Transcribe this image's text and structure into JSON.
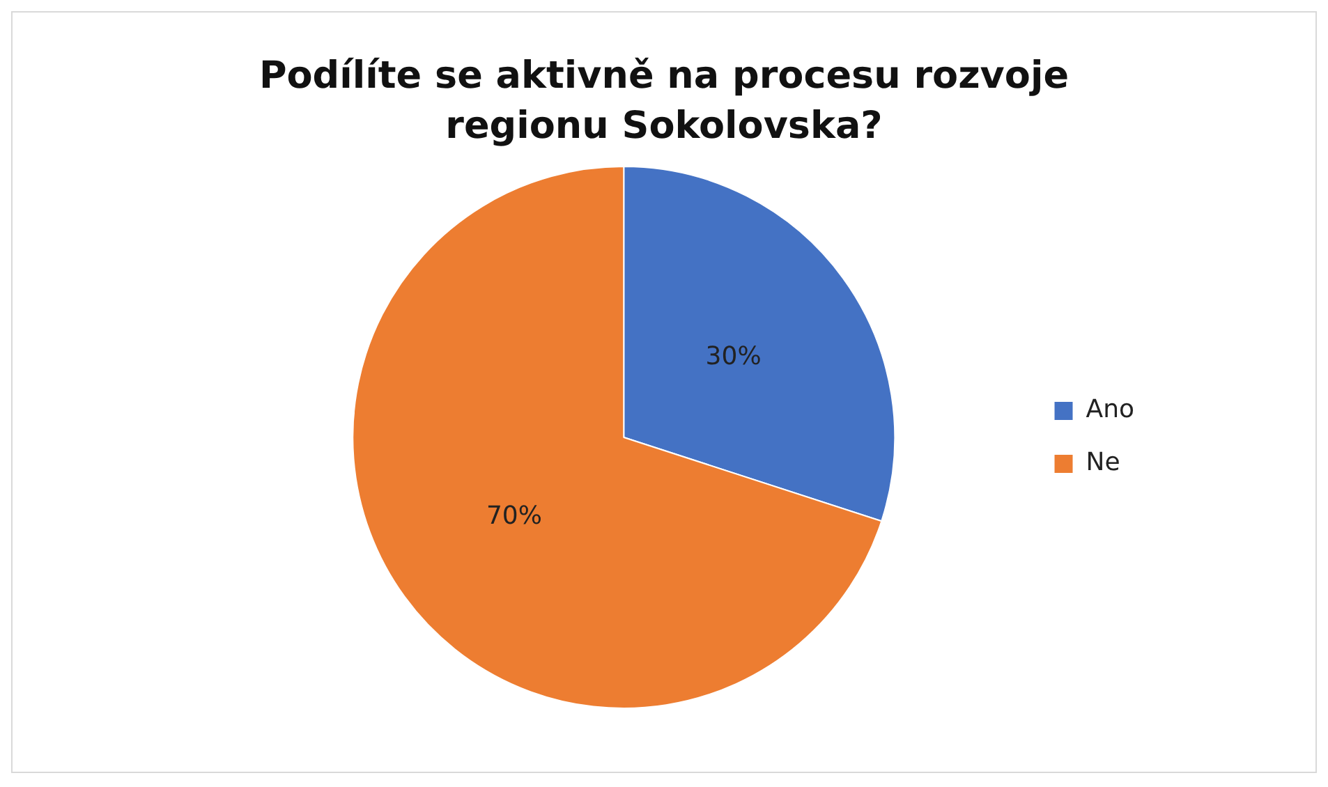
{
  "chart_data": {
    "type": "pie",
    "title": "Podílíte se aktivně na procesu rozvoje regionu Sokolovska?",
    "categories": [
      "Ano",
      "Ne"
    ],
    "values": [
      30,
      70
    ],
    "colors": [
      "#4472c4",
      "#ed7d31"
    ],
    "value_labels": [
      "30%",
      "70%"
    ],
    "legend": "right"
  }
}
